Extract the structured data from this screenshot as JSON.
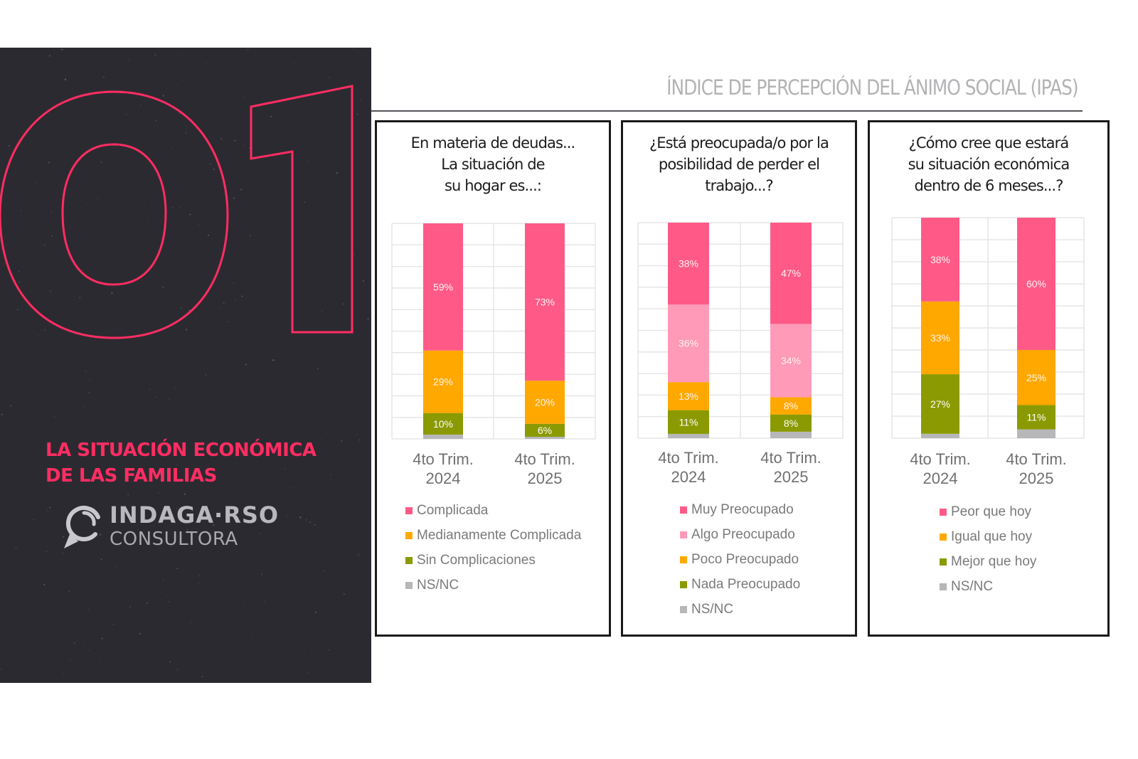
{
  "header": {
    "title": "ÍNDICE DE PERCEPCIÓN DEL ÁNIMO SOCIAL (IPAS)"
  },
  "left_panel": {
    "section_number": "01",
    "section_title_lines": [
      "LA SITUACIÓN ECONÓMICA",
      "DE LAS FAMILIAS"
    ],
    "logo": {
      "main": "INDAGA·RSO",
      "sub": "CONSULTORA",
      "icon": "magnifier-speech-bubble-icon"
    },
    "accent_color": "#ff2d62",
    "background_color": "#2c2a31"
  },
  "colors": {
    "pink": "#ff5a87",
    "light_pink": "#ff9ab9",
    "orange": "#ffa800",
    "olive": "#8a9a00",
    "gray": "#b7b7b9"
  },
  "chart_data": [
    {
      "type": "bar",
      "stacked": true,
      "title": "En materia de deudas... La situación de su hogar es...:",
      "title_lines": [
        "En materia de deudas...",
        "La situación de",
        "su hogar es...:"
      ],
      "categories": [
        "4to Trim. 2024",
        "4to Trim. 2025"
      ],
      "category_lines": [
        [
          "4to Trim.",
          "2024"
        ],
        [
          "4to Trim.",
          "2025"
        ]
      ],
      "series": [
        {
          "name": "NS/NC",
          "color": "#b7b7b9",
          "values": [
            2,
            1
          ],
          "labels": [
            "",
            ""
          ]
        },
        {
          "name": "Sin Complicaciones",
          "color": "#8a9a00",
          "values": [
            10,
            6
          ],
          "labels": [
            "10%",
            "6%"
          ]
        },
        {
          "name": "Medianamente Complicada",
          "color": "#ffa800",
          "values": [
            29,
            20
          ],
          "labels": [
            "29%",
            "20%"
          ]
        },
        {
          "name": "Complicada",
          "color": "#ff5a87",
          "values": [
            59,
            73
          ],
          "labels": [
            "59%",
            "73%"
          ]
        }
      ],
      "legend_order": [
        "Complicada",
        "Medianamente Complicada",
        "Sin Complicaciones",
        "NS/NC"
      ],
      "ylim": [
        0,
        100
      ],
      "grid": true,
      "legend_position": "bottom"
    },
    {
      "type": "bar",
      "stacked": true,
      "title": "¿Está preocupada/o por la posibilidad de perder el trabajo...?",
      "title_lines": [
        "¿Está preocupada/o por la",
        "posibilidad de perder el",
        "trabajo...?"
      ],
      "categories": [
        "4to Trim. 2024",
        "4to Trim. 2025"
      ],
      "category_lines": [
        [
          "4to Trim.",
          "2024"
        ],
        [
          "4to Trim.",
          "2025"
        ]
      ],
      "series": [
        {
          "name": "NS/NC",
          "color": "#b7b7b9",
          "values": [
            2,
            3
          ],
          "labels": [
            "",
            ""
          ]
        },
        {
          "name": "Nada Preocupado",
          "color": "#8a9a00",
          "values": [
            11,
            8
          ],
          "labels": [
            "11%",
            "8%"
          ]
        },
        {
          "name": "Poco Preocupado",
          "color": "#ffa800",
          "values": [
            13,
            8
          ],
          "labels": [
            "13%",
            "8%"
          ]
        },
        {
          "name": "Algo Preocupado",
          "color": "#ff9ab9",
          "values": [
            36,
            34
          ],
          "labels": [
            "36%",
            "34%"
          ]
        },
        {
          "name": "Muy Preocupado",
          "color": "#ff5a87",
          "values": [
            38,
            47
          ],
          "labels": [
            "38%",
            "47%"
          ]
        }
      ],
      "legend_order": [
        "Muy Preocupado",
        "Algo Preocupado",
        "Poco Preocupado",
        "Nada Preocupado",
        "NS/NC"
      ],
      "ylim": [
        0,
        100
      ],
      "grid": true,
      "legend_position": "bottom"
    },
    {
      "type": "bar",
      "stacked": true,
      "title": "¿Cómo cree que estará su situación económica dentro de 6 meses...?",
      "title_lines": [
        "¿Cómo cree que estará",
        "su situación económica",
        "dentro de 6 meses...?"
      ],
      "categories": [
        "4to Trim. 2024",
        "4to Trim. 2025"
      ],
      "category_lines": [
        [
          "4to Trim.",
          "2024"
        ],
        [
          "4to Trim.",
          "2025"
        ]
      ],
      "series": [
        {
          "name": "NS/NC",
          "color": "#b7b7b9",
          "values": [
            2,
            4
          ],
          "labels": [
            "",
            ""
          ]
        },
        {
          "name": "Mejor que hoy",
          "color": "#8a9a00",
          "values": [
            27,
            11
          ],
          "labels": [
            "27%",
            "11%"
          ]
        },
        {
          "name": "Igual que hoy",
          "color": "#ffa800",
          "values": [
            33,
            25
          ],
          "labels": [
            "33%",
            "25%"
          ]
        },
        {
          "name": "Peor que hoy",
          "color": "#ff5a87",
          "values": [
            38,
            60
          ],
          "labels": [
            "38%",
            "60%"
          ]
        }
      ],
      "legend_order": [
        "Peor que hoy",
        "Igual que hoy",
        "Mejor que hoy",
        "NS/NC"
      ],
      "ylim": [
        0,
        100
      ],
      "grid": true,
      "legend_position": "bottom"
    }
  ]
}
